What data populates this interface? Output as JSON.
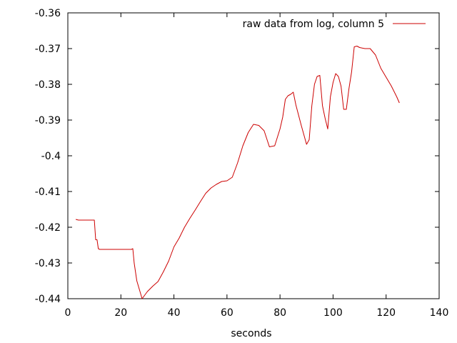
{
  "chart_data": {
    "type": "line",
    "xlabel": "seconds",
    "ylabel": "",
    "xlim": [
      0,
      140
    ],
    "ylim": [
      -0.44,
      -0.36
    ],
    "x_ticks": [
      0,
      20,
      40,
      60,
      80,
      100,
      120,
      140
    ],
    "y_ticks": [
      -0.44,
      -0.43,
      -0.42,
      -0.41,
      -0.4,
      -0.39,
      -0.38,
      -0.37,
      -0.36
    ],
    "x_tick_labels": [
      "0",
      "20",
      "40",
      "60",
      "80",
      "100",
      "120",
      "140"
    ],
    "y_tick_labels": [
      "-0.44",
      "-0.43",
      "-0.42",
      "-0.41",
      "-0.4",
      "-0.39",
      "-0.38",
      "-0.37",
      "-0.36"
    ],
    "grid": false,
    "legend_position": "top-right",
    "series": [
      {
        "name": "raw data from log, column 5",
        "color": "#cc0000",
        "x": [
          3,
          4,
          5,
          10,
          10.5,
          11,
          11.5,
          12,
          15,
          20,
          24,
          24.5,
          25,
          26,
          28,
          30,
          32,
          34,
          36,
          38,
          40,
          42,
          44,
          46,
          48,
          50,
          52,
          54,
          56,
          58,
          60,
          62,
          64,
          66,
          68,
          70,
          72,
          74,
          76,
          78,
          80,
          81,
          82,
          83,
          84,
          85,
          86,
          88,
          90,
          91,
          92,
          93,
          94,
          95,
          96,
          97,
          98,
          99,
          100,
          101,
          102,
          103,
          104,
          105,
          106,
          107,
          108,
          109,
          110,
          112,
          114,
          116,
          118,
          120,
          122,
          124,
          125
        ],
        "y": [
          -0.4178,
          -0.418,
          -0.418,
          -0.418,
          -0.4235,
          -0.4235,
          -0.426,
          -0.4262,
          -0.4262,
          -0.4262,
          -0.4262,
          -0.426,
          -0.43,
          -0.435,
          -0.44,
          -0.438,
          -0.4365,
          -0.4352,
          -0.4325,
          -0.4295,
          -0.4255,
          -0.423,
          -0.42,
          -0.4175,
          -0.4152,
          -0.4128,
          -0.4105,
          -0.409,
          -0.408,
          -0.4072,
          -0.407,
          -0.406,
          -0.402,
          -0.3972,
          -0.3935,
          -0.3912,
          -0.3915,
          -0.393,
          -0.3975,
          -0.3972,
          -0.3925,
          -0.3892,
          -0.3842,
          -0.3832,
          -0.3828,
          -0.3822,
          -0.3858,
          -0.3915,
          -0.3968,
          -0.3955,
          -0.386,
          -0.38,
          -0.3778,
          -0.3775,
          -0.386,
          -0.3895,
          -0.3925,
          -0.3835,
          -0.3795,
          -0.377,
          -0.3778,
          -0.3805,
          -0.387,
          -0.387,
          -0.3812,
          -0.3765,
          -0.3695,
          -0.3693,
          -0.3697,
          -0.37,
          -0.37,
          -0.3718,
          -0.3755,
          -0.378,
          -0.3805,
          -0.3835,
          -0.3852
        ]
      }
    ]
  }
}
